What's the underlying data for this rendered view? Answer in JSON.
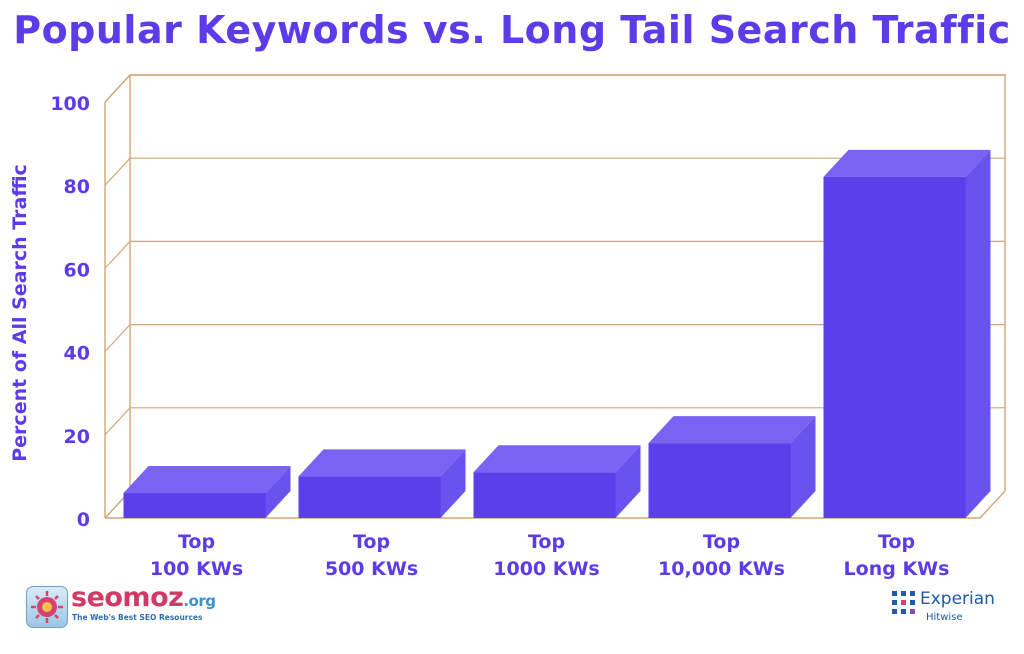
{
  "chart_data": {
    "type": "bar",
    "title": "Popular Keywords vs. Long Tail Search Traffic",
    "ylabel": "Percent of All Search Traffic",
    "xlabel": "",
    "ylim": [
      0,
      100
    ],
    "yticks": [
      "0",
      "20",
      "40",
      "60",
      "80",
      "100"
    ],
    "categories": [
      [
        "Top",
        "100 KWs"
      ],
      [
        "Top",
        "500 KWs"
      ],
      [
        "Top",
        "1000 KWs"
      ],
      [
        "Top",
        "10,000 KWs"
      ],
      [
        "Top",
        "Long KWs"
      ]
    ],
    "values": [
      6,
      10,
      11,
      18,
      82
    ],
    "grid": true,
    "legend": "none",
    "colors": {
      "bar_front": "#5b3fea",
      "bar_top": "#7a63f2",
      "bar_side": "#6a52ef",
      "frame": "#d2a678",
      "text": "#5b3ce8"
    }
  },
  "branding": {
    "left_word": "seomoz",
    "left_suffix": ".org",
    "left_tagline": "The Web's Best SEO Resources",
    "right_word": "Experian",
    "right_sub": "Hitwise"
  }
}
